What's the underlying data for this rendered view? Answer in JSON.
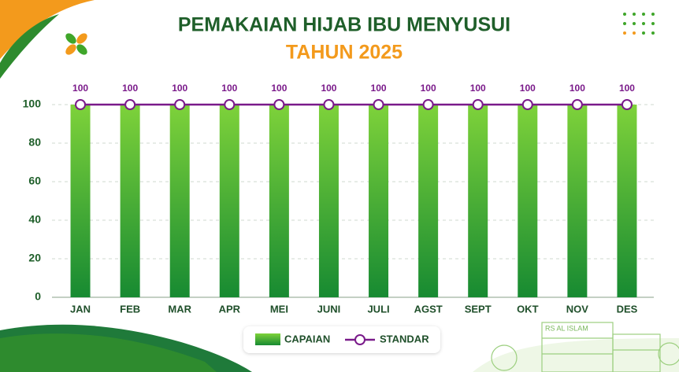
{
  "chart_data": {
    "type": "bar",
    "title": "PEMAKAIAN HIJAB IBU MENYUSUI",
    "subtitle": "TAHUN 2025",
    "categories": [
      "JAN",
      "FEB",
      "MAR",
      "APR",
      "MEI",
      "JUNI",
      "JULI",
      "AGST",
      "SEPT",
      "OKT",
      "NOV",
      "DES"
    ],
    "series": [
      {
        "name": "CAPAIAN",
        "type": "bar",
        "color": "#3fa62a",
        "values": [
          100,
          100,
          100,
          100,
          100,
          100,
          100,
          100,
          100,
          100,
          100,
          100
        ]
      },
      {
        "name": "STANDAR",
        "type": "line",
        "color": "#7a1a8a",
        "values": [
          100,
          100,
          100,
          100,
          100,
          100,
          100,
          100,
          100,
          100,
          100,
          100
        ]
      }
    ],
    "ylim": [
      0,
      100
    ],
    "yticks": [
      0,
      20,
      40,
      60,
      80,
      100
    ],
    "grid": true,
    "building_sign": "RS AL ISLAM"
  }
}
